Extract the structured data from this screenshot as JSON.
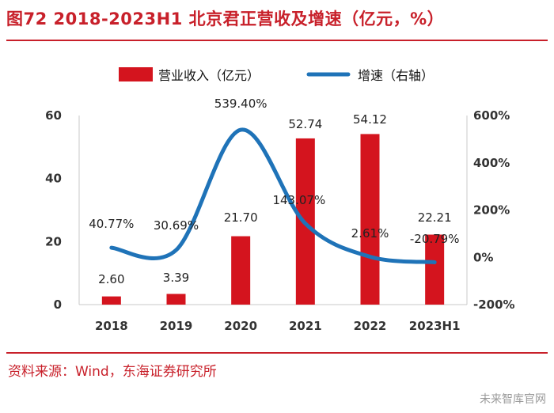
{
  "title": "图72  2018-2023H1 北京君正营收及增速（亿元，%）",
  "source": "资料来源：Wind，东海证券研究所",
  "watermark": "未来智库官网",
  "colors": {
    "bar": "#d4141e",
    "line": "#1f73b8",
    "accent": "#c8202a"
  },
  "chart_data": {
    "type": "bar",
    "categories": [
      "2018",
      "2019",
      "2020",
      "2021",
      "2022",
      "2023H1"
    ],
    "series": [
      {
        "name": "营业收入（亿元）",
        "type": "bar",
        "axis": "left",
        "values": [
          2.6,
          3.39,
          21.7,
          52.74,
          54.12,
          22.21
        ],
        "labels": [
          "2.60",
          "3.39",
          "21.70",
          "52.74",
          "54.12",
          "22.21"
        ]
      },
      {
        "name": "增速（右轴）",
        "type": "line",
        "axis": "right",
        "values": [
          40.77,
          30.69,
          539.4,
          143.07,
          2.61,
          -20.79
        ],
        "labels": [
          "40.77%",
          "30.69%",
          "539.40%",
          "143.07%",
          "2.61%",
          "-20.79%"
        ]
      }
    ],
    "y_left": {
      "ylim": [
        0,
        60
      ],
      "ticks": [
        "0",
        "20",
        "40",
        "60"
      ]
    },
    "y_right": {
      "ylim": [
        -200,
        600
      ],
      "ticks": [
        "-200%",
        "0%",
        "200%",
        "400%",
        "600%"
      ]
    },
    "legend": "top",
    "grid": false,
    "line_style": "smooth"
  }
}
